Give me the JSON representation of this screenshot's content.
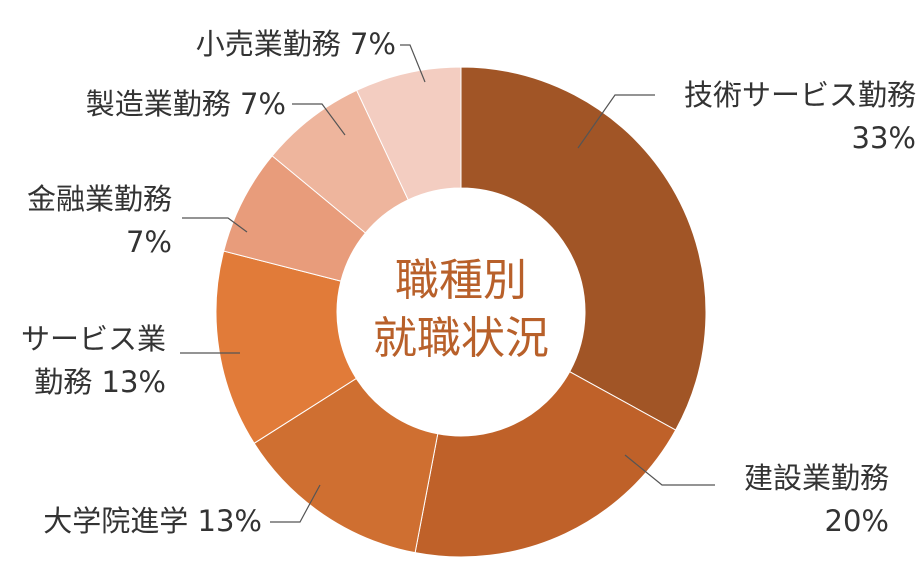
{
  "chart_data": {
    "type": "donut",
    "title": "職種別\n就職状況",
    "categories": [
      "技術サービス勤務",
      "建設業勤務",
      "大学院進学",
      "サービス業\n勤務",
      "金融業勤務",
      "製造業勤務",
      "小売業勤務"
    ],
    "values": [
      33,
      20,
      13,
      13,
      7,
      7,
      7
    ],
    "value_labels": [
      "33%",
      "20%",
      "13%",
      "13%",
      "7%",
      "7%",
      "7%"
    ],
    "colors": [
      "#a15526",
      "#bf6129",
      "#cf6f31",
      "#e17b39",
      "#e89c7b",
      "#eeb59d",
      "#f3cdc1"
    ]
  }
}
